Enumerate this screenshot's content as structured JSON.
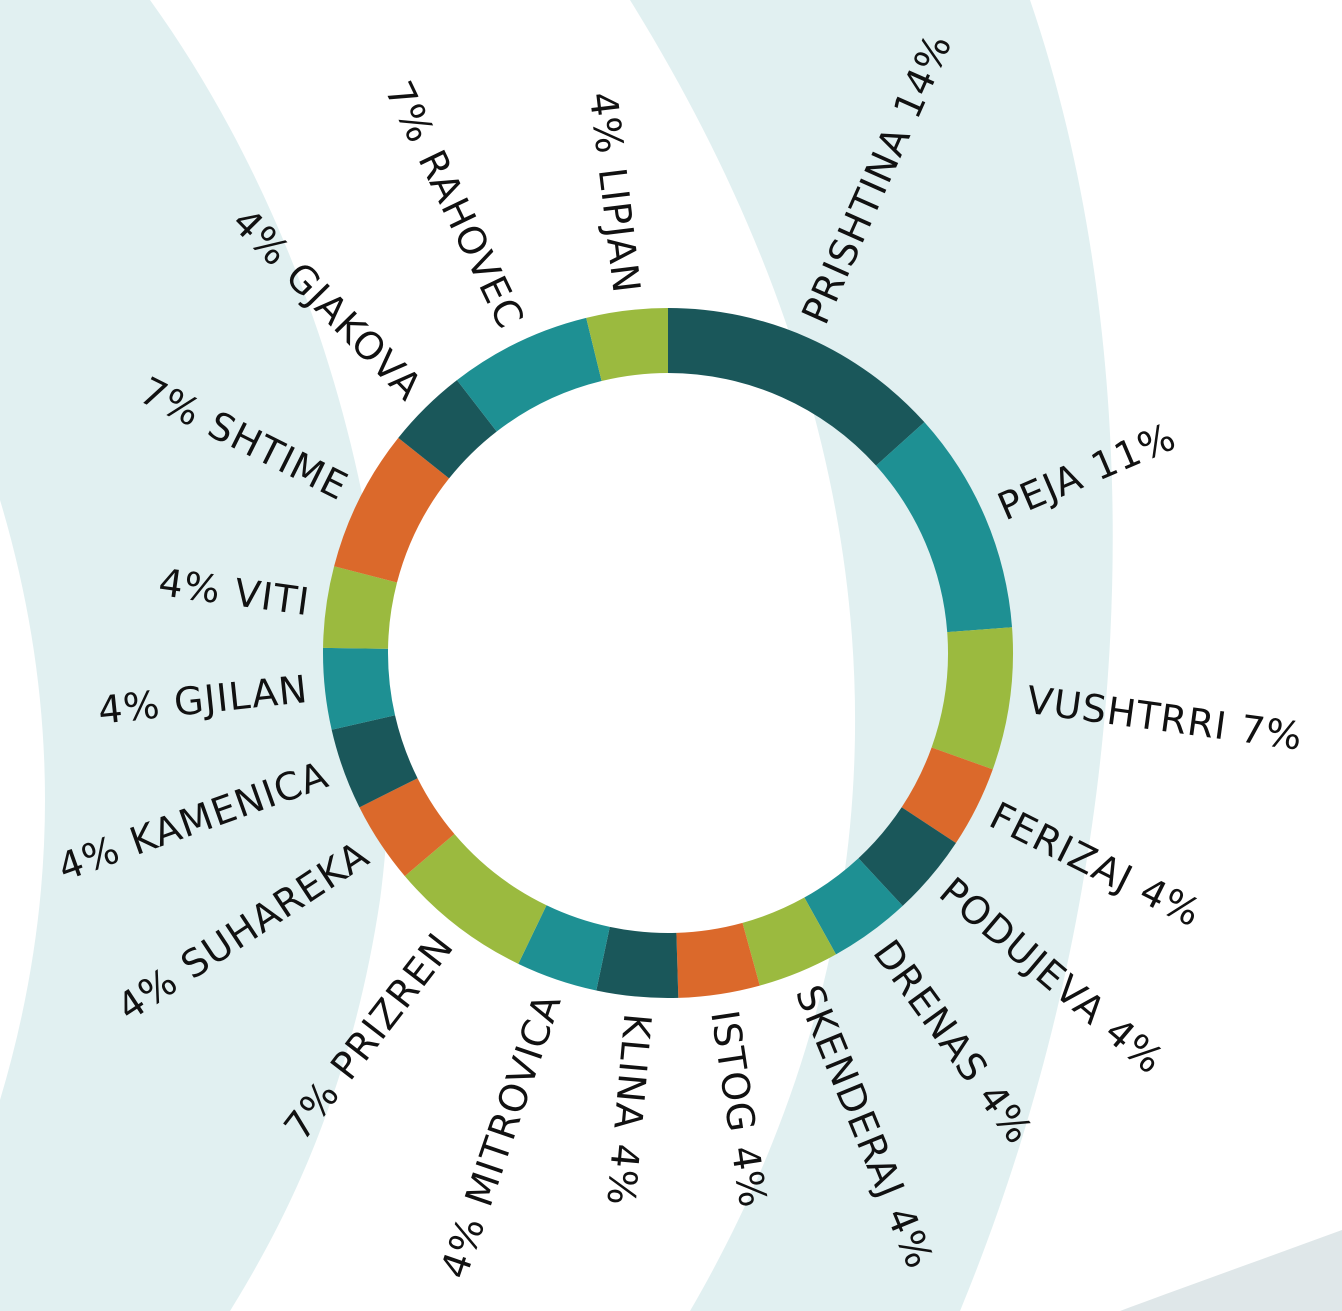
{
  "chart_data": {
    "type": "donut",
    "categories": [
      "PRISHTINA",
      "PEJA",
      "VUSHTRRI",
      "FERIZAJ",
      "PODUJEVA",
      "DRENAS",
      "SKENDERAJ",
      "ISTOG",
      "KLINA",
      "MITROVICA",
      "PRIZREN",
      "SUHAREKA",
      "KAMENICA",
      "GJILAN",
      "VITI",
      "SHTIME",
      "GJAKOVA",
      "RAHOVEC",
      "LIPJAN"
    ],
    "values": [
      14,
      11,
      7,
      4,
      4,
      4,
      4,
      4,
      4,
      4,
      7,
      4,
      4,
      4,
      4,
      7,
      4,
      7,
      4
    ],
    "value_labels": [
      "14%",
      "11%",
      "7%",
      "4%",
      "4%",
      "4%",
      "4%",
      "4%",
      "4%",
      "4%",
      "7%",
      "4%",
      "4%",
      "4%",
      "4%",
      "7%",
      "4%",
      "7%",
      "4%"
    ],
    "colors": [
      "#1a575a",
      "#1e9093",
      "#9bba3f",
      "#db692b",
      "#1a575a",
      "#1e9093",
      "#9bba3f",
      "#db692b",
      "#1a575a",
      "#1e9093",
      "#9bba3f",
      "#db692b",
      "#1a575a",
      "#1e9093",
      "#9bba3f",
      "#db692b",
      "#1a575a",
      "#1e9093",
      "#9bba3f"
    ]
  }
}
